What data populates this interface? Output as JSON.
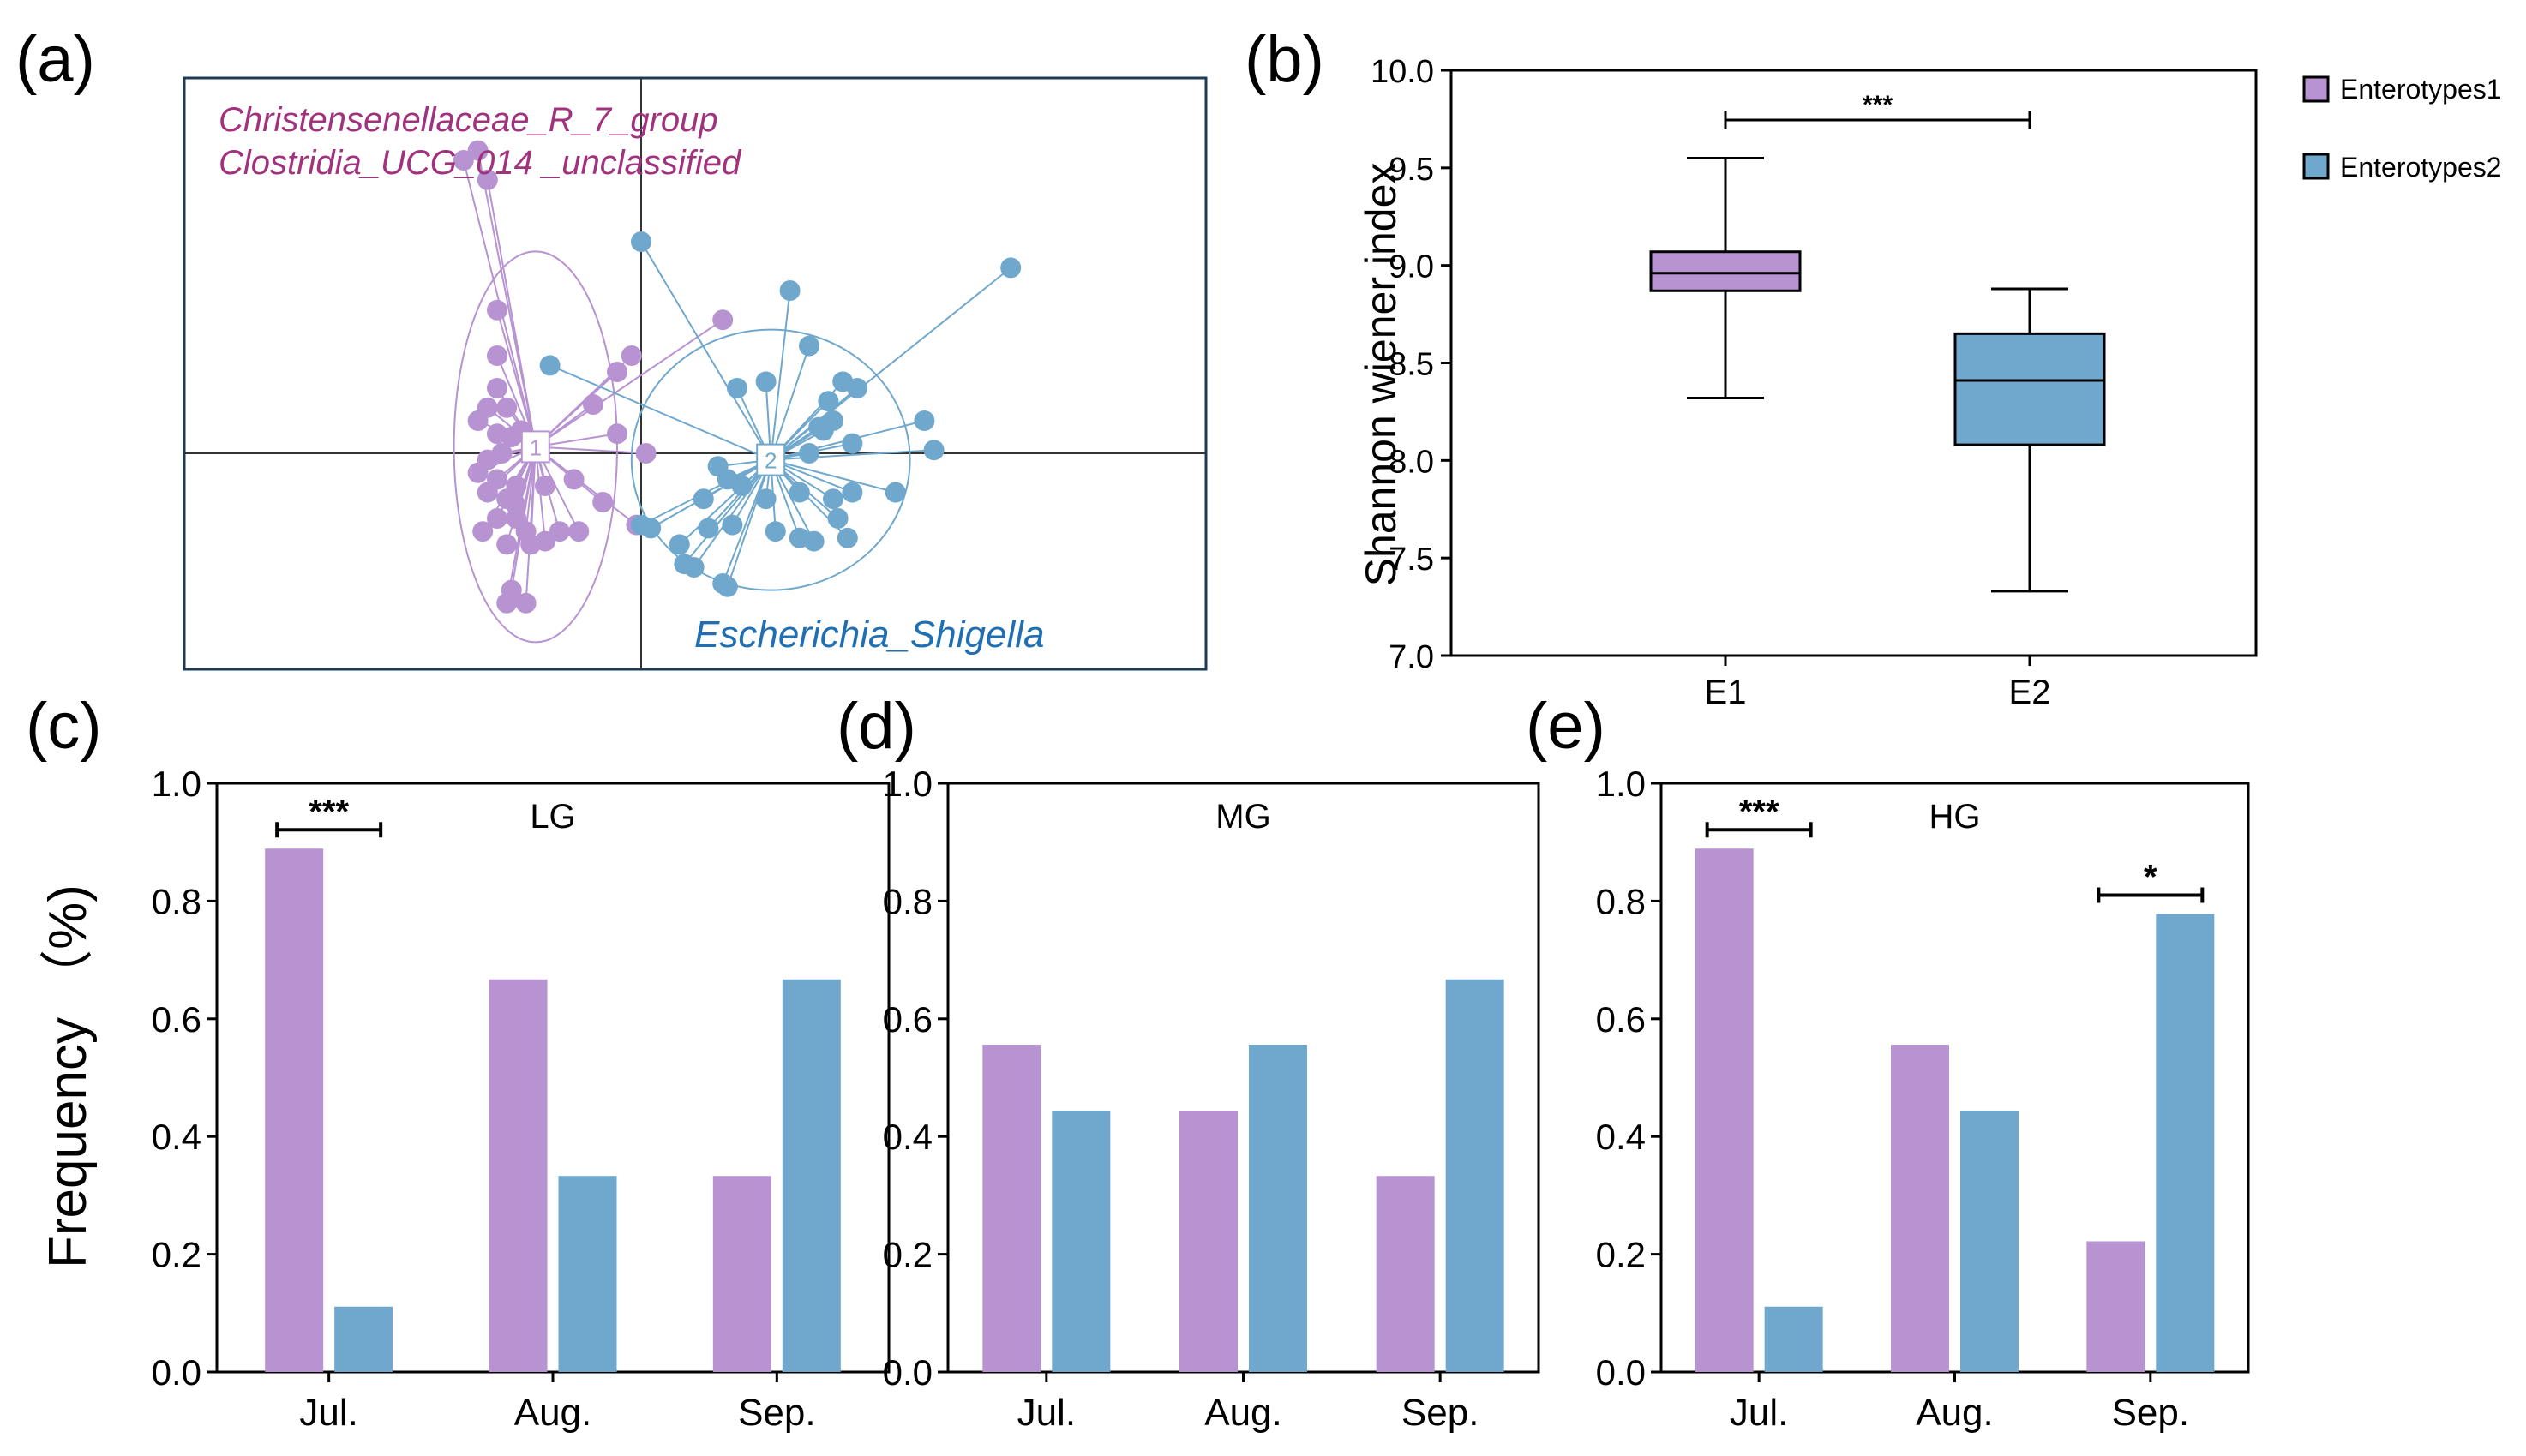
{
  "colors": {
    "e1": "#b793d2",
    "e1_dark": "#a64ab0",
    "e2": "#6fa8cc",
    "e2_dark": "#1f6fb2",
    "axis": "#000000",
    "frame": "#1d3b52"
  },
  "panels": {
    "a": "(a)",
    "b": "(b)",
    "c": "(c)",
    "d": "(d)",
    "e": "(e)"
  },
  "chart_data": [
    {
      "id": "a",
      "type": "scatter",
      "title": "",
      "annotations": {
        "top_left_1": "Christensenellaceae_R_7_group",
        "top_left_2": "Clostridia_UCG_014 _unclassified",
        "bottom_right": "Escherichia_Shigella"
      },
      "centroid_labels": [
        "1",
        "2"
      ],
      "xlim": [
        -1,
        1
      ],
      "ylim": [
        -1,
        1
      ],
      "series": [
        {
          "name": "Enterotypes1",
          "centroid": [
            -0.22,
            0.02
          ],
          "ellipse": {
            "rx": 0.17,
            "ry": 0.6
          },
          "points": [
            [
              -0.37,
              0.9
            ],
            [
              -0.34,
              0.93
            ],
            [
              -0.32,
              0.84
            ],
            [
              -0.3,
              0.44
            ],
            [
              -0.3,
              0.3
            ],
            [
              -0.3,
              0.2
            ],
            [
              -0.32,
              0.14
            ],
            [
              -0.34,
              0.1
            ],
            [
              -0.3,
              0.06
            ],
            [
              -0.28,
              0.14
            ],
            [
              -0.27,
              0.05
            ],
            [
              -0.32,
              -0.02
            ],
            [
              -0.34,
              -0.06
            ],
            [
              -0.3,
              -0.08
            ],
            [
              -0.26,
              -0.1
            ],
            [
              -0.32,
              -0.12
            ],
            [
              -0.28,
              -0.14
            ],
            [
              -0.26,
              -0.16
            ],
            [
              -0.3,
              -0.2
            ],
            [
              -0.26,
              -0.2
            ],
            [
              -0.33,
              -0.24
            ],
            [
              -0.24,
              -0.24
            ],
            [
              -0.28,
              -0.28
            ],
            [
              -0.23,
              -0.28
            ],
            [
              -0.2,
              -0.27
            ],
            [
              -0.27,
              -0.42
            ],
            [
              -0.28,
              -0.46
            ],
            [
              -0.24,
              -0.46
            ],
            [
              -0.2,
              -0.1
            ],
            [
              -0.14,
              -0.08
            ],
            [
              -0.17,
              -0.24
            ],
            [
              -0.13,
              -0.24
            ],
            [
              -0.08,
              -0.15
            ],
            [
              -0.1,
              0.15
            ],
            [
              -0.05,
              0.25
            ],
            [
              -0.02,
              0.3
            ],
            [
              -0.05,
              0.06
            ],
            [
              0.01,
              0.0
            ],
            [
              -0.01,
              -0.22
            ],
            [
              0.17,
              0.41
            ],
            [
              -0.25,
              0.07
            ],
            [
              -0.29,
              0.0
            ]
          ]
        },
        {
          "name": "Enterotypes2",
          "centroid": [
            0.27,
            -0.02
          ],
          "ellipse": {
            "rx": 0.29,
            "ry": 0.4
          },
          "points": [
            [
              0.0,
              0.65
            ],
            [
              -0.19,
              0.27
            ],
            [
              0.31,
              0.5
            ],
            [
              0.35,
              0.33
            ],
            [
              0.2,
              0.2
            ],
            [
              0.26,
              0.22
            ],
            [
              0.42,
              0.22
            ],
            [
              0.45,
              0.2
            ],
            [
              0.39,
              0.16
            ],
            [
              0.37,
              0.08
            ],
            [
              0.4,
              0.1
            ],
            [
              0.44,
              0.03
            ],
            [
              0.38,
              0.07
            ],
            [
              0.59,
              0.1
            ],
            [
              0.61,
              0.01
            ],
            [
              0.77,
              0.57
            ],
            [
              0.16,
              -0.04
            ],
            [
              0.18,
              -0.08
            ],
            [
              0.21,
              -0.1
            ],
            [
              0.13,
              -0.14
            ],
            [
              0.26,
              -0.14
            ],
            [
              0.33,
              -0.12
            ],
            [
              0.4,
              -0.14
            ],
            [
              0.44,
              -0.12
            ],
            [
              0.53,
              -0.12
            ],
            [
              0.41,
              -0.2
            ],
            [
              0.14,
              -0.23
            ],
            [
              0.19,
              -0.22
            ],
            [
              0.28,
              -0.24
            ],
            [
              0.33,
              -0.26
            ],
            [
              0.36,
              -0.27
            ],
            [
              0.43,
              -0.26
            ],
            [
              0.08,
              -0.28
            ],
            [
              0.09,
              -0.34
            ],
            [
              0.11,
              -0.35
            ],
            [
              0.17,
              -0.4
            ],
            [
              0.18,
              -0.41
            ],
            [
              0.0,
              -0.22
            ],
            [
              0.02,
              -0.23
            ],
            [
              0.35,
              0.0
            ]
          ]
        }
      ]
    },
    {
      "id": "b",
      "type": "box",
      "ylabel": "Shannon wiener index",
      "ylim": [
        7.0,
        10.0
      ],
      "yticks": [
        "7.0",
        "7.5",
        "8.0",
        "8.5",
        "9.0",
        "9.5",
        "10.0"
      ],
      "categories": [
        "E1",
        "E2"
      ],
      "boxes": [
        {
          "min": 8.32,
          "q1": 8.87,
          "median": 8.96,
          "q3": 9.07,
          "max": 9.55
        },
        {
          "min": 7.33,
          "q1": 8.08,
          "median": 8.41,
          "q3": 8.65,
          "max": 8.88
        }
      ],
      "significance": "***",
      "legend": [
        "Enterotypes1",
        "Enterotypes2"
      ],
      "legend_position": "right"
    },
    {
      "id": "c",
      "type": "bar",
      "title": "LG",
      "ylabel": "Frequency （%)",
      "ylim": [
        0,
        1.0
      ],
      "yticks": [
        "0.0",
        "0.2",
        "0.4",
        "0.6",
        "0.8",
        "1.0"
      ],
      "categories": [
        "Jul.",
        "Aug.",
        "Sep."
      ],
      "series": [
        {
          "name": "Enterotypes1",
          "values": [
            0.889,
            0.667,
            0.333
          ]
        },
        {
          "name": "Enterotypes2",
          "values": [
            0.111,
            0.333,
            0.667
          ]
        }
      ],
      "significance": [
        {
          "category": "Jul.",
          "label": "***"
        }
      ]
    },
    {
      "id": "d",
      "type": "bar",
      "title": "MG",
      "ylim": [
        0,
        1.0
      ],
      "yticks": [
        "0.0",
        "0.2",
        "0.4",
        "0.6",
        "0.8",
        "1.0"
      ],
      "categories": [
        "Jul.",
        "Aug.",
        "Sep."
      ],
      "series": [
        {
          "name": "Enterotypes1",
          "values": [
            0.556,
            0.444,
            0.333
          ]
        },
        {
          "name": "Enterotypes2",
          "values": [
            0.444,
            0.556,
            0.667
          ]
        }
      ],
      "significance": []
    },
    {
      "id": "e",
      "type": "bar",
      "title": "HG",
      "ylim": [
        0,
        1.0
      ],
      "yticks": [
        "0.0",
        "0.2",
        "0.4",
        "0.6",
        "0.8",
        "1.0"
      ],
      "categories": [
        "Jul.",
        "Aug.",
        "Sep."
      ],
      "series": [
        {
          "name": "Enterotypes1",
          "values": [
            0.889,
            0.556,
            0.222
          ]
        },
        {
          "name": "Enterotypes2",
          "values": [
            0.111,
            0.444,
            0.778
          ]
        }
      ],
      "significance": [
        {
          "category": "Jul.",
          "label": "***"
        },
        {
          "category": "Sep.",
          "label": "*"
        }
      ]
    }
  ]
}
